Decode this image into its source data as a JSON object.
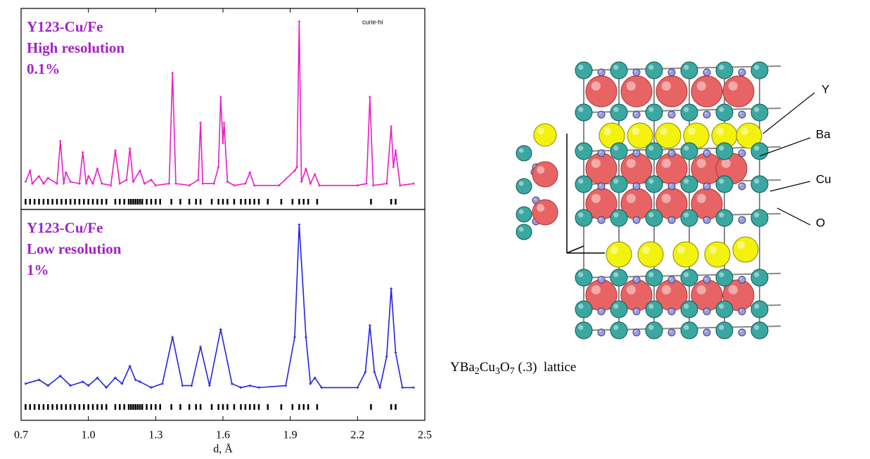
{
  "chart_data": [
    {
      "type": "line",
      "color": "#e81cc8",
      "note": "curie-hi",
      "annotations": [
        "Y123-Cu/Fe",
        "High resolution",
        "0.1%"
      ],
      "xlim": [
        0.7,
        2.5
      ],
      "ylim": [
        0,
        100
      ],
      "x": [
        0.72,
        0.74,
        0.75,
        0.78,
        0.8,
        0.82,
        0.86,
        0.875,
        0.89,
        0.9,
        0.92,
        0.96,
        0.975,
        0.99,
        1.0,
        1.02,
        1.04,
        1.06,
        1.1,
        1.12,
        1.14,
        1.17,
        1.185,
        1.2,
        1.23,
        1.25,
        1.28,
        1.3,
        1.36,
        1.375,
        1.39,
        1.45,
        1.49,
        1.5,
        1.51,
        1.56,
        1.58,
        1.59,
        1.6,
        1.605,
        1.62,
        1.65,
        1.7,
        1.72,
        1.74,
        1.85,
        1.92,
        1.93,
        1.94,
        1.95,
        1.97,
        1.99,
        2.01,
        2.03,
        2.2,
        2.24,
        2.255,
        2.27,
        2.33,
        2.35,
        2.36,
        2.37,
        2.39,
        2.45
      ],
      "values": [
        12,
        18,
        11,
        15,
        11,
        14,
        11,
        34,
        11,
        17,
        12,
        11,
        28,
        11,
        15,
        11,
        19,
        11,
        10,
        29,
        11,
        13,
        30,
        12,
        18,
        11,
        13,
        10,
        11,
        71,
        11,
        10,
        13,
        44,
        11,
        11,
        20,
        58,
        33,
        44,
        12,
        10,
        11,
        17,
        10,
        10,
        18,
        20,
        99,
        12,
        19,
        11,
        16,
        10,
        10,
        11,
        58,
        10,
        11,
        42,
        20,
        29,
        10,
        11
      ],
      "reflections": [
        0.72,
        0.74,
        0.76,
        0.78,
        0.8,
        0.82,
        0.84,
        0.86,
        0.88,
        0.9,
        0.92,
        0.94,
        0.96,
        0.98,
        1.0,
        1.02,
        1.04,
        1.06,
        1.08,
        1.12,
        1.14,
        1.16,
        1.18,
        1.19,
        1.2,
        1.21,
        1.22,
        1.23,
        1.24,
        1.26,
        1.28,
        1.3,
        1.32,
        1.37,
        1.41,
        1.45,
        1.48,
        1.5,
        1.55,
        1.58,
        1.6,
        1.62,
        1.65,
        1.68,
        1.7,
        1.72,
        1.74,
        1.76,
        1.8,
        1.86,
        1.91,
        1.94,
        1.96,
        1.98,
        2.02,
        2.26,
        2.35,
        2.37
      ]
    },
    {
      "type": "line",
      "color": "#2323e0",
      "annotations": [
        "Y123-Cu/Fe",
        "Low resolution",
        "1%"
      ],
      "xlabel": "d, Å",
      "xlim": [
        0.7,
        2.5
      ],
      "ylim": [
        0,
        100
      ],
      "xticks": [
        0.7,
        {
          "value": 1,
          "label": "1.0"
        },
        1.3,
        1.6,
        1.9,
        2.2,
        2.5
      ],
      "x": [
        0.72,
        0.78,
        0.82,
        0.875,
        0.92,
        0.975,
        1.0,
        1.04,
        1.08,
        1.12,
        1.15,
        1.185,
        1.21,
        1.23,
        1.28,
        1.33,
        1.375,
        1.42,
        1.46,
        1.5,
        1.54,
        1.59,
        1.64,
        1.68,
        1.72,
        1.76,
        1.88,
        1.92,
        1.94,
        1.97,
        1.99,
        2.01,
        2.04,
        2.2,
        2.235,
        2.255,
        2.275,
        2.3,
        2.33,
        2.35,
        2.37,
        2.4,
        2.45
      ],
      "values": [
        16,
        18,
        15,
        20,
        15,
        17,
        15,
        19,
        14,
        19,
        16,
        25,
        18,
        17,
        14,
        16,
        40,
        15,
        15,
        35,
        15,
        44,
        16,
        14,
        15,
        14,
        15,
        40,
        98,
        40,
        16,
        19,
        14,
        14,
        22,
        46,
        22,
        14,
        30,
        65,
        32,
        14,
        14
      ],
      "reflections": [
        0.72,
        0.74,
        0.76,
        0.78,
        0.8,
        0.82,
        0.84,
        0.86,
        0.88,
        0.9,
        0.92,
        0.94,
        0.96,
        0.98,
        1.0,
        1.02,
        1.04,
        1.06,
        1.08,
        1.12,
        1.14,
        1.16,
        1.18,
        1.19,
        1.2,
        1.21,
        1.22,
        1.23,
        1.24,
        1.26,
        1.28,
        1.3,
        1.32,
        1.37,
        1.41,
        1.45,
        1.48,
        1.5,
        1.55,
        1.58,
        1.6,
        1.62,
        1.65,
        1.68,
        1.7,
        1.72,
        1.74,
        1.76,
        1.8,
        1.86,
        1.91,
        1.94,
        1.96,
        1.98,
        2.02,
        2.26,
        2.35,
        2.37
      ]
    }
  ],
  "structure": {
    "labels": [
      "Y",
      "Ba",
      "Cu",
      "O"
    ],
    "caption": [
      "YBa",
      "2",
      "Cu",
      "3",
      "O",
      "7",
      " (.3)  lattice"
    ]
  }
}
